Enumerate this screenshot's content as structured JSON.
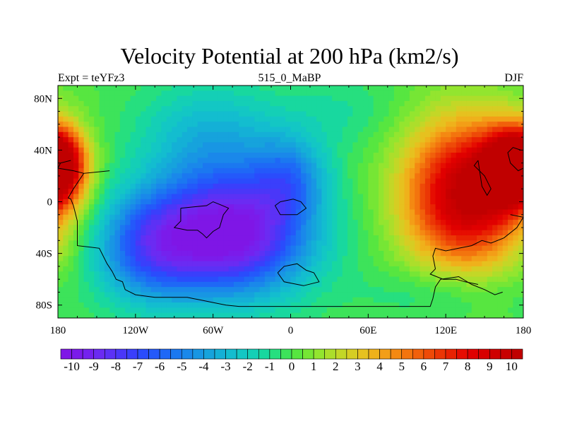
{
  "chart_data": {
    "type": "heatmap",
    "title": "Velocity Potential at 200 hPa (km2/s)",
    "subtitle_left": "Expt = teYFz3",
    "subtitle_center": "515_0_MaBP",
    "subtitle_right": "DJF",
    "x_ticks": [
      {
        "value": -180,
        "label": "180"
      },
      {
        "value": -120,
        "label": "120W"
      },
      {
        "value": -60,
        "label": "60W"
      },
      {
        "value": 0,
        "label": "0"
      },
      {
        "value": 60,
        "label": "60E"
      },
      {
        "value": 120,
        "label": "120E"
      },
      {
        "value": 180,
        "label": "180"
      }
    ],
    "y_ticks": [
      {
        "value": 80,
        "label": "80N"
      },
      {
        "value": 40,
        "label": "40N"
      },
      {
        "value": 0,
        "label": "0"
      },
      {
        "value": -40,
        "label": "40S"
      },
      {
        "value": -80,
        "label": "80S"
      }
    ],
    "xlim": [
      -180,
      180
    ],
    "ylim": [
      -90,
      90
    ],
    "colorbar": {
      "min": -10.5,
      "max": 10.5,
      "step": 0.5,
      "labels": [
        "-10",
        "-9",
        "-8",
        "-7",
        "-6",
        "-5",
        "-4",
        "-3",
        "-2",
        "-1",
        "0",
        "1",
        "2",
        "3",
        "4",
        "5",
        "6",
        "7",
        "8",
        "9",
        "10"
      ],
      "colors": [
        "#7f16e6",
        "#7b1bea",
        "#7422ee",
        "#6b2bf2",
        "#5c31f5",
        "#4a37f8",
        "#3a3ffb",
        "#2a4cfc",
        "#2459fa",
        "#1f68f6",
        "#1b78f0",
        "#1a88ea",
        "#1896e3",
        "#16a3dc",
        "#14b0d6",
        "#13bdcf",
        "#13c7c4",
        "#14cfb6",
        "#18d89f",
        "#26df7f",
        "#3de35a",
        "#57e640",
        "#76e635",
        "#93e52f",
        "#acde2b",
        "#c3d727",
        "#d6cd23",
        "#e6c11f",
        "#efb11b",
        "#f39e17",
        "#f48912",
        "#f3740e",
        "#f1600b",
        "#ee4a08",
        "#eb3605",
        "#e82202",
        "#e60d01",
        "#e00000",
        "#d80000",
        "#cf0000",
        "#c80000",
        "#c00000"
      ]
    },
    "field_centers": [
      {
        "lon": -45,
        "lat": -25,
        "value": -10.4,
        "sx": 42,
        "sy": 33
      },
      {
        "lon": -110,
        "lat": -35,
        "value": -5.5,
        "sx": 30,
        "sy": 30
      },
      {
        "lon": 0,
        "lat": 20,
        "value": -3.5,
        "sx": 20,
        "sy": 22
      },
      {
        "lon": -60,
        "lat": 50,
        "value": -3.0,
        "sx": 40,
        "sy": 30
      },
      {
        "lon": 135,
        "lat": 5,
        "value": 10.2,
        "sx": 33,
        "sy": 40
      },
      {
        "lon": 170,
        "lat": 25,
        "value": 7.5,
        "sx": 18,
        "sy": 22
      },
      {
        "lon": -180,
        "lat": 30,
        "value": 7.5,
        "sx": 14,
        "sy": 18
      },
      {
        "lon": 120,
        "lat": -70,
        "value": -1.5,
        "sx": 40,
        "sy": 15
      },
      {
        "lon": 40,
        "lat": 70,
        "value": -1.0,
        "sx": 30,
        "sy": 20
      }
    ],
    "coastlines": [
      [
        [
          -140,
          24
        ],
        [
          -160,
          22
        ],
        [
          -168,
          10
        ],
        [
          -172,
          3
        ],
        [
          -170,
          2
        ],
        [
          -168,
          -3
        ],
        [
          -165,
          -15
        ],
        [
          -165,
          -34
        ],
        [
          -148,
          -36
        ],
        [
          -142,
          -48
        ],
        [
          -138,
          -54
        ],
        [
          -135,
          -60
        ],
        [
          -130,
          -62
        ],
        [
          -128,
          -68
        ],
        [
          -120,
          -72
        ],
        [
          -105,
          -74
        ],
        [
          -90,
          -74
        ],
        [
          -80,
          -74
        ],
        [
          -75,
          -75
        ],
        [
          -70,
          -76
        ],
        [
          -60,
          -78
        ],
        [
          -50,
          -80
        ],
        [
          -40,
          -81
        ],
        [
          -20,
          -81
        ],
        [
          0,
          -81
        ],
        [
          20,
          -81
        ],
        [
          40,
          -81
        ],
        [
          60,
          -81
        ],
        [
          80,
          -81
        ],
        [
          100,
          -81
        ],
        [
          108,
          -81
        ],
        [
          110,
          -75
        ],
        [
          112,
          -66
        ],
        [
          116,
          -60
        ],
        [
          130,
          -58
        ],
        [
          140,
          -64
        ],
        [
          150,
          -68
        ],
        [
          158,
          -72
        ],
        [
          164,
          -70
        ]
      ],
      [
        [
          -170,
          32
        ],
        [
          -178,
          30
        ],
        [
          -180,
          26
        ],
        [
          -168,
          24
        ],
        [
          -160,
          22
        ]
      ],
      [
        [
          -85,
          -5
        ],
        [
          -85,
          -15
        ],
        [
          -90,
          -20
        ],
        [
          -80,
          -22
        ],
        [
          -72,
          -22
        ],
        [
          -68,
          -25
        ],
        [
          -65,
          -28
        ],
        [
          -60,
          -23
        ],
        [
          -55,
          -20
        ],
        [
          -52,
          -10
        ],
        [
          -48,
          -5
        ],
        [
          -55,
          -2
        ],
        [
          -60,
          0
        ],
        [
          -65,
          -3
        ],
        [
          -75,
          -4
        ],
        [
          -85,
          -5
        ]
      ],
      [
        [
          -10,
          -55
        ],
        [
          -5,
          -50
        ],
        [
          5,
          -48
        ],
        [
          12,
          -53
        ],
        [
          18,
          -55
        ],
        [
          22,
          -62
        ],
        [
          10,
          -65
        ],
        [
          -5,
          -62
        ],
        [
          -10,
          -55
        ]
      ],
      [
        [
          -8,
          0
        ],
        [
          -12,
          -3
        ],
        [
          -8,
          -10
        ],
        [
          5,
          -10
        ],
        [
          12,
          -5
        ],
        [
          8,
          0
        ],
        [
          2,
          2
        ],
        [
          -8,
          0
        ]
      ],
      [
        [
          178,
          40
        ],
        [
          172,
          42
        ],
        [
          168,
          38
        ],
        [
          170,
          30
        ],
        [
          176,
          24
        ],
        [
          180,
          26
        ]
      ],
      [
        [
          145,
          32
        ],
        [
          142,
          28
        ],
        [
          150,
          20
        ],
        [
          155,
          10
        ],
        [
          152,
          5
        ],
        [
          148,
          12
        ],
        [
          146,
          25
        ],
        [
          145,
          32
        ]
      ],
      [
        [
          170,
          -10
        ],
        [
          180,
          -12
        ],
        [
          175,
          -20
        ],
        [
          165,
          -28
        ],
        [
          155,
          -32
        ],
        [
          148,
          -30
        ],
        [
          140,
          -34
        ],
        [
          130,
          -36
        ],
        [
          120,
          -38
        ],
        [
          112,
          -36
        ],
        [
          110,
          -42
        ],
        [
          112,
          -52
        ],
        [
          108,
          -56
        ],
        [
          118,
          -60
        ],
        [
          128,
          -60
        ],
        [
          135,
          -62
        ],
        [
          145,
          -64
        ]
      ]
    ]
  }
}
